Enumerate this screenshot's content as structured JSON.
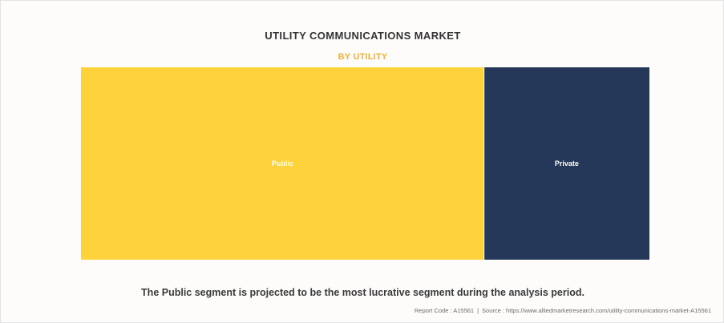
{
  "chart_data": {
    "type": "treemap",
    "title": "UTILITY COMMUNICATIONS MARKET",
    "subtitle": "BY UTILITY",
    "segments": [
      {
        "name": "Public",
        "value": 70.9,
        "color": "#fdd23a"
      },
      {
        "name": "Private",
        "value": 29.1,
        "color": "#25385a"
      }
    ]
  },
  "footnote": "The Public segment is projected to be the most lucrative segment during the analysis period.",
  "source": {
    "report_code": "Report Code : A15561",
    "separator": "|",
    "source_text": "Source : https://www.alliedmarketresearch.com/utility-communications-market-A15561"
  }
}
